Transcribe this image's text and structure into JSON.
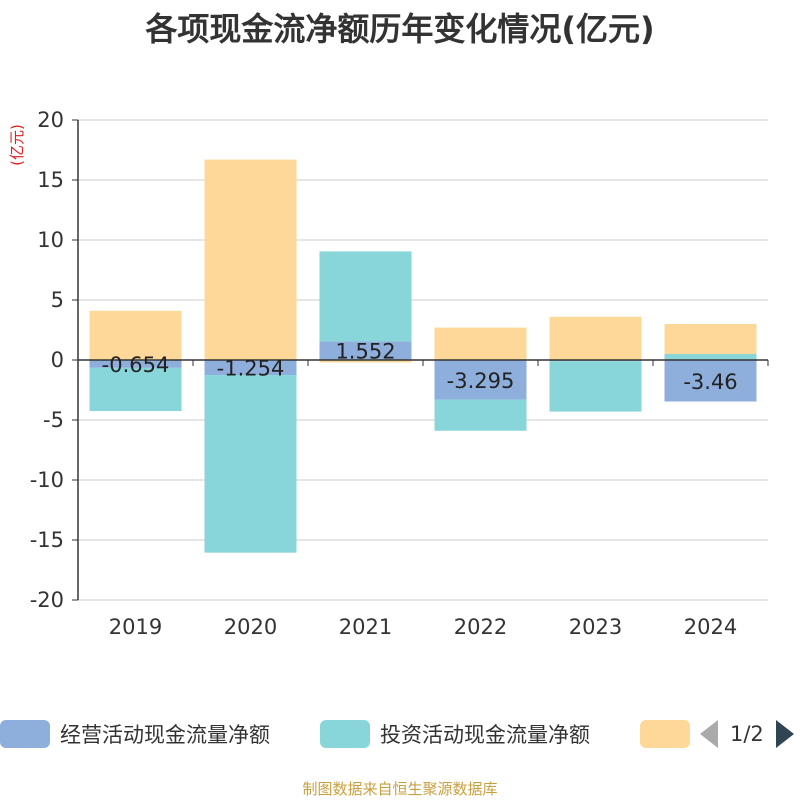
{
  "chart_data": {
    "type": "bar",
    "stacked": true,
    "title": "各项现金流净额历年变化情况(亿元)",
    "unit_label": "(亿元)",
    "categories": [
      "2019",
      "2020",
      "2021",
      "2022",
      "2023",
      "2024"
    ],
    "ylim": [
      -20,
      20
    ],
    "yticks": [
      20,
      15,
      10,
      5,
      0,
      -5,
      -10,
      -15,
      -20
    ],
    "grid": true,
    "legend_position": "bottom",
    "series": [
      {
        "name": "经营活动现金流量净额",
        "color": "#8eaedc",
        "values": [
          -0.654,
          -1.254,
          1.552,
          -3.295,
          -0.1,
          -3.46
        ],
        "labels": [
          "-0.654",
          "-1.254",
          "1.552",
          "-3.295",
          "",
          "-3.46"
        ]
      },
      {
        "name": "投资活动现金流量净额",
        "color": "#88d6d9",
        "values": [
          -3.6,
          -14.8,
          7.5,
          -2.6,
          -4.2,
          0.5
        ]
      },
      {
        "name": "",
        "color": "#fed899",
        "values": [
          4.1,
          16.7,
          -0.2,
          2.7,
          3.6,
          2.5
        ]
      }
    ]
  },
  "legend": {
    "page": "1/2"
  },
  "source": "制图数据来自恒生聚源数据库"
}
